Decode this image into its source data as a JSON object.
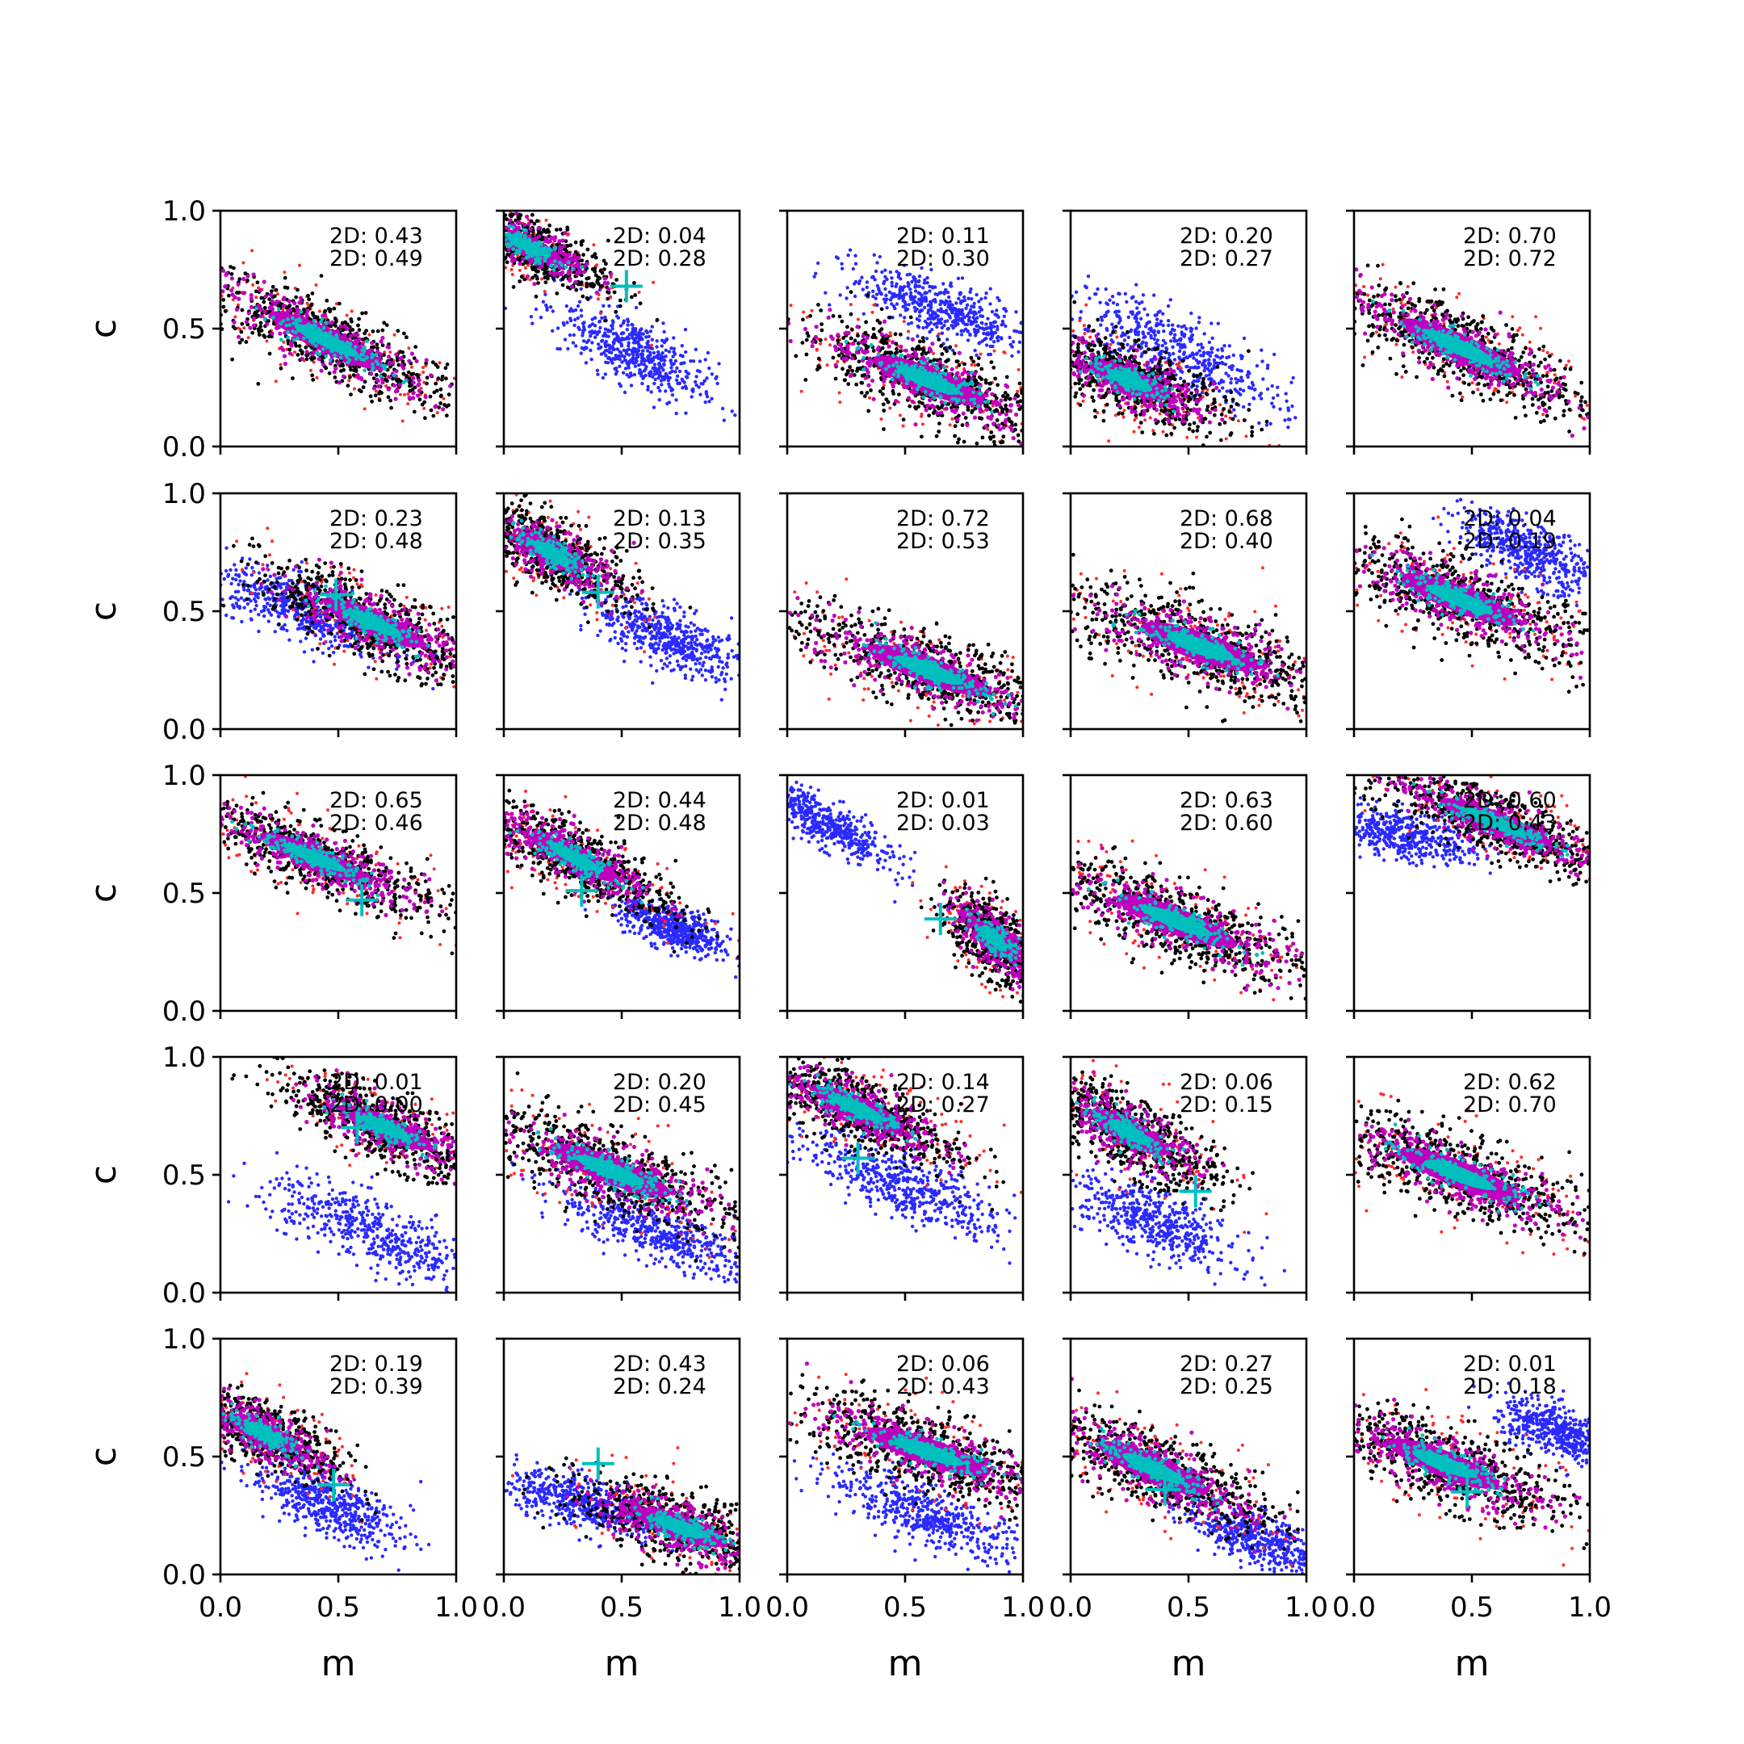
{
  "chart_data": {
    "type": "scatter",
    "layout": "5x5 grid of scatter panels",
    "xlabel": "m",
    "ylabel": "c",
    "xlim": [
      0,
      1
    ],
    "ylim": [
      0,
      1
    ],
    "xticks": [
      "0.0",
      "0.5",
      "1.0"
    ],
    "yticks": [
      "0.0",
      "0.5",
      "1.0"
    ],
    "colors": {
      "red": "#ff2a2a",
      "black": "#000000",
      "blue": "#2a2aff",
      "magenta": "#bf00bf",
      "cyan": "#00bfbf"
    },
    "panels": [
      {
        "row": 0,
        "col": 0,
        "annot": [
          "2D: 0.43",
          "2D: 0.49"
        ],
        "main": {
          "m": 0.45,
          "c": 0.45,
          "a": 0.58,
          "b": 0.11,
          "slope": -0.48
        },
        "blue": null,
        "marker": null
      },
      {
        "row": 0,
        "col": 1,
        "annot": [
          "2D: 0.04",
          "2D: 0.28"
        ],
        "main": {
          "m": 0.1,
          "c": 0.85,
          "a": 0.35,
          "b": 0.09,
          "slope": -0.45
        },
        "blue": {
          "m": 0.55,
          "c": 0.4,
          "a": 0.3,
          "b": 0.09,
          "slope": -0.55
        },
        "marker": {
          "m": 0.52,
          "c": 0.68
        }
      },
      {
        "row": 0,
        "col": 2,
        "annot": [
          "2D: 0.11",
          "2D: 0.30"
        ],
        "main": {
          "m": 0.6,
          "c": 0.28,
          "a": 0.55,
          "b": 0.12,
          "slope": -0.4
        },
        "blue": {
          "m": 0.65,
          "c": 0.58,
          "a": 0.35,
          "b": 0.08,
          "slope": -0.4
        },
        "marker": null
      },
      {
        "row": 0,
        "col": 3,
        "annot": [
          "2D: 0.20",
          "2D: 0.27"
        ],
        "main": {
          "m": 0.25,
          "c": 0.28,
          "a": 0.4,
          "b": 0.11,
          "slope": -0.42
        },
        "blue": {
          "m": 0.45,
          "c": 0.4,
          "a": 0.45,
          "b": 0.1,
          "slope": -0.5
        },
        "marker": null
      },
      {
        "row": 0,
        "col": 4,
        "annot": [
          "2D: 0.70",
          "2D: 0.72"
        ],
        "main": {
          "m": 0.45,
          "c": 0.42,
          "a": 0.6,
          "b": 0.12,
          "slope": -0.45
        },
        "blue": null,
        "marker": null
      },
      {
        "row": 1,
        "col": 0,
        "annot": [
          "2D: 0.23",
          "2D: 0.48"
        ],
        "main": {
          "m": 0.65,
          "c": 0.45,
          "a": 0.5,
          "b": 0.11,
          "slope": -0.45
        },
        "blue": {
          "m": 0.35,
          "c": 0.5,
          "a": 0.35,
          "b": 0.08,
          "slope": -0.4
        },
        "marker": {
          "m": 0.49,
          "c": 0.57
        }
      },
      {
        "row": 1,
        "col": 1,
        "annot": [
          "2D: 0.13",
          "2D: 0.35"
        ],
        "main": {
          "m": 0.2,
          "c": 0.75,
          "a": 0.35,
          "b": 0.1,
          "slope": -0.55
        },
        "blue": {
          "m": 0.7,
          "c": 0.38,
          "a": 0.3,
          "b": 0.08,
          "slope": -0.45
        },
        "marker": {
          "m": 0.4,
          "c": 0.58
        }
      },
      {
        "row": 1,
        "col": 2,
        "annot": [
          "2D: 0.72",
          "2D: 0.53"
        ],
        "main": {
          "m": 0.6,
          "c": 0.25,
          "a": 0.6,
          "b": 0.12,
          "slope": -0.38
        },
        "blue": null,
        "marker": null
      },
      {
        "row": 1,
        "col": 3,
        "annot": [
          "2D: 0.68",
          "2D: 0.40"
        ],
        "main": {
          "m": 0.55,
          "c": 0.35,
          "a": 0.58,
          "b": 0.13,
          "slope": -0.35
        },
        "blue": null,
        "marker": null
      },
      {
        "row": 1,
        "col": 4,
        "annot": [
          "2D: 0.04",
          "2D: 0.19"
        ],
        "main": {
          "m": 0.45,
          "c": 0.55,
          "a": 0.58,
          "b": 0.12,
          "slope": -0.4
        },
        "blue": {
          "m": 0.75,
          "c": 0.75,
          "a": 0.3,
          "b": 0.08,
          "slope": -0.45
        },
        "marker": null
      },
      {
        "row": 2,
        "col": 0,
        "annot": [
          "2D: 0.65",
          "2D: 0.46"
        ],
        "main": {
          "m": 0.4,
          "c": 0.65,
          "a": 0.55,
          "b": 0.1,
          "slope": -0.42
        },
        "blue": null,
        "marker": {
          "m": 0.6,
          "c": 0.47
        }
      },
      {
        "row": 2,
        "col": 1,
        "annot": [
          "2D: 0.44",
          "2D: 0.48"
        ],
        "main": {
          "m": 0.3,
          "c": 0.65,
          "a": 0.45,
          "b": 0.1,
          "slope": -0.5
        },
        "blue": {
          "m": 0.72,
          "c": 0.35,
          "a": 0.2,
          "b": 0.06,
          "slope": -0.4
        },
        "marker": {
          "m": 0.33,
          "c": 0.51
        }
      },
      {
        "row": 2,
        "col": 2,
        "annot": [
          "2D: 0.01",
          "2D: 0.03"
        ],
        "main": {
          "m": 0.88,
          "c": 0.3,
          "a": 0.25,
          "b": 0.09,
          "slope": -0.9
        },
        "blue": {
          "m": 0.15,
          "c": 0.8,
          "a": 0.3,
          "b": 0.06,
          "slope": -0.6
        },
        "marker": {
          "m": 0.65,
          "c": 0.39
        }
      },
      {
        "row": 2,
        "col": 3,
        "annot": [
          "2D: 0.63",
          "2D: 0.60"
        ],
        "main": {
          "m": 0.45,
          "c": 0.38,
          "a": 0.6,
          "b": 0.12,
          "slope": -0.4
        },
        "blue": null,
        "marker": null
      },
      {
        "row": 2,
        "col": 4,
        "annot": [
          "2D: 0.60",
          "2D: 0.43"
        ],
        "main": {
          "m": 0.6,
          "c": 0.8,
          "a": 0.55,
          "b": 0.1,
          "slope": -0.4
        },
        "blue": {
          "m": 0.2,
          "c": 0.75,
          "a": 0.3,
          "b": 0.07,
          "slope": -0.2
        },
        "marker": null
      },
      {
        "row": 3,
        "col": 0,
        "annot": [
          "2D: 0.01",
          "2D: 0.00"
        ],
        "main": {
          "m": 0.7,
          "c": 0.7,
          "a": 0.45,
          "b": 0.1,
          "slope": -0.45
        },
        "blue": {
          "m": 0.65,
          "c": 0.25,
          "a": 0.45,
          "b": 0.09,
          "slope": -0.45
        },
        "marker": {
          "m": 0.58,
          "c": 0.7
        }
      },
      {
        "row": 3,
        "col": 1,
        "annot": [
          "2D: 0.20",
          "2D: 0.45"
        ],
        "main": {
          "m": 0.45,
          "c": 0.52,
          "a": 0.6,
          "b": 0.12,
          "slope": -0.4
        },
        "blue": {
          "m": 0.65,
          "c": 0.25,
          "a": 0.4,
          "b": 0.08,
          "slope": -0.4
        },
        "marker": null
      },
      {
        "row": 3,
        "col": 2,
        "annot": [
          "2D: 0.14",
          "2D: 0.27"
        ],
        "main": {
          "m": 0.3,
          "c": 0.78,
          "a": 0.45,
          "b": 0.11,
          "slope": -0.45
        },
        "blue": {
          "m": 0.5,
          "c": 0.45,
          "a": 0.4,
          "b": 0.09,
          "slope": -0.45
        },
        "marker": {
          "m": 0.3,
          "c": 0.57
        }
      },
      {
        "row": 3,
        "col": 3,
        "annot": [
          "2D: 0.06",
          "2D: 0.15"
        ],
        "main": {
          "m": 0.25,
          "c": 0.68,
          "a": 0.4,
          "b": 0.11,
          "slope": -0.55
        },
        "blue": {
          "m": 0.35,
          "c": 0.3,
          "a": 0.35,
          "b": 0.09,
          "slope": -0.45
        },
        "marker": {
          "m": 0.53,
          "c": 0.43
        }
      },
      {
        "row": 3,
        "col": 4,
        "annot": [
          "2D: 0.62",
          "2D: 0.70"
        ],
        "main": {
          "m": 0.45,
          "c": 0.5,
          "a": 0.6,
          "b": 0.12,
          "slope": -0.4
        },
        "blue": null,
        "marker": null
      },
      {
        "row": 4,
        "col": 0,
        "annot": [
          "2D: 0.19",
          "2D: 0.39"
        ],
        "main": {
          "m": 0.18,
          "c": 0.6,
          "a": 0.35,
          "b": 0.1,
          "slope": -0.5
        },
        "blue": {
          "m": 0.45,
          "c": 0.3,
          "a": 0.3,
          "b": 0.08,
          "slope": -0.45
        },
        "marker": {
          "m": 0.48,
          "c": 0.38
        }
      },
      {
        "row": 4,
        "col": 1,
        "annot": [
          "2D: 0.43",
          "2D: 0.24"
        ],
        "main": {
          "m": 0.75,
          "c": 0.2,
          "a": 0.45,
          "b": 0.11,
          "slope": -0.35
        },
        "blue": {
          "m": 0.35,
          "c": 0.3,
          "a": 0.3,
          "b": 0.07,
          "slope": -0.3
        },
        "marker": {
          "m": 0.4,
          "c": 0.47
        }
      },
      {
        "row": 4,
        "col": 2,
        "annot": [
          "2D: 0.06",
          "2D: 0.43"
        ],
        "main": {
          "m": 0.6,
          "c": 0.52,
          "a": 0.6,
          "b": 0.12,
          "slope": -0.35
        },
        "blue": {
          "m": 0.6,
          "c": 0.25,
          "a": 0.4,
          "b": 0.08,
          "slope": -0.4
        },
        "marker": null
      },
      {
        "row": 4,
        "col": 3,
        "annot": [
          "2D: 0.27",
          "2D: 0.25"
        ],
        "main": {
          "m": 0.35,
          "c": 0.45,
          "a": 0.55,
          "b": 0.12,
          "slope": -0.45
        },
        "blue": {
          "m": 0.8,
          "c": 0.15,
          "a": 0.3,
          "b": 0.07,
          "slope": -0.4
        },
        "marker": {
          "m": 0.4,
          "c": 0.36
        }
      },
      {
        "row": 4,
        "col": 4,
        "annot": [
          "2D: 0.01",
          "2D: 0.18"
        ],
        "main": {
          "m": 0.38,
          "c": 0.47,
          "a": 0.55,
          "b": 0.12,
          "slope": -0.4
        },
        "blue": {
          "m": 0.88,
          "c": 0.6,
          "a": 0.25,
          "b": 0.07,
          "slope": -0.4
        },
        "marker": {
          "m": 0.48,
          "c": 0.35
        }
      }
    ]
  }
}
